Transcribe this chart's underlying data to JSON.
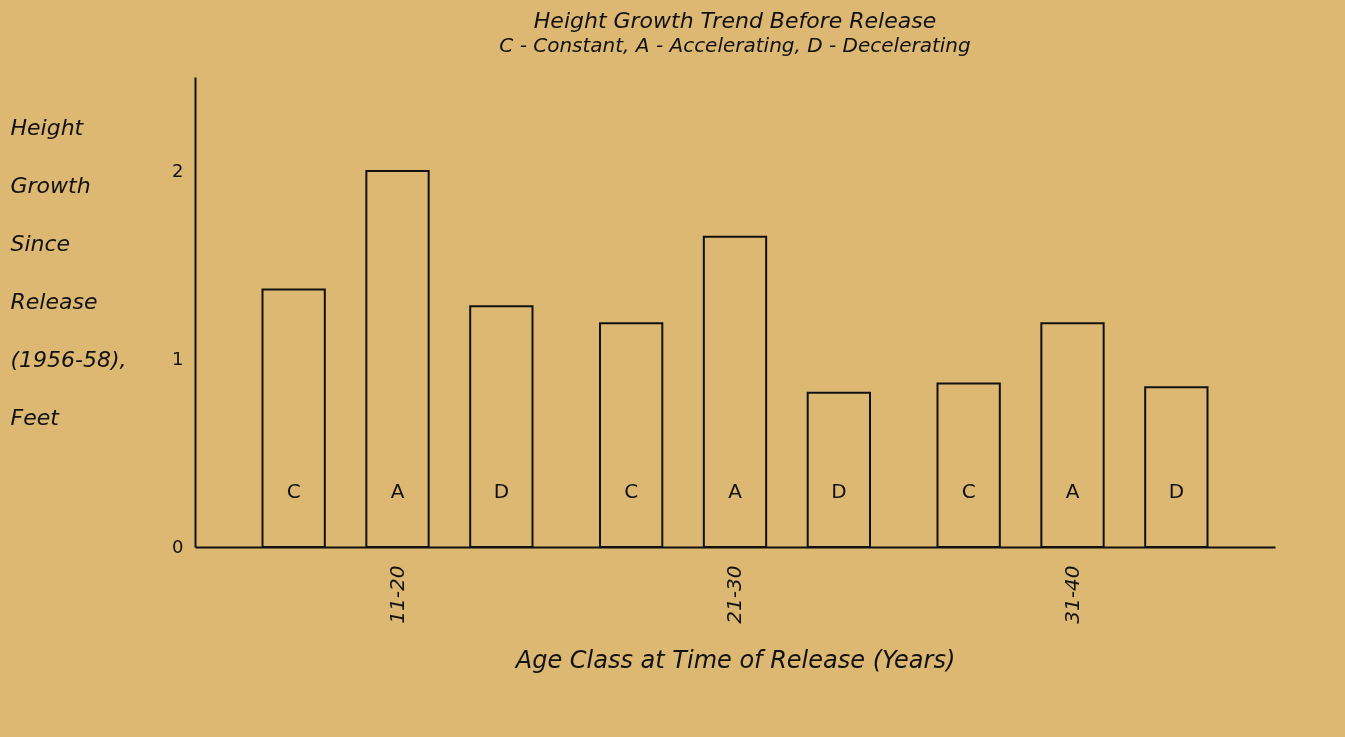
{
  "chart_data": {
    "type": "bar",
    "title": "Height Growth Trend Before Release",
    "subtitle": "C - Constant, A - Accelerating, D - Decelerating",
    "xlabel": "Age Class at Time of Release (Years)",
    "ylabel": "Height Growth Since Release (1956-58), Feet",
    "categories": [
      "11-20",
      "21-30",
      "31-40"
    ],
    "series": [
      {
        "name": "C",
        "color": "#dcb873",
        "values": [
          1.37,
          1.19,
          0.87
        ]
      },
      {
        "name": "A",
        "color": "#dcb873",
        "values": [
          2.0,
          1.65,
          1.19
        ]
      },
      {
        "name": "D",
        "color": "#dcb873",
        "values": [
          1.28,
          0.82,
          0.85
        ]
      }
    ],
    "ylim": [
      0,
      2.5
    ],
    "yticks": [
      0,
      1,
      2
    ],
    "grid": false,
    "legend": false
  }
}
